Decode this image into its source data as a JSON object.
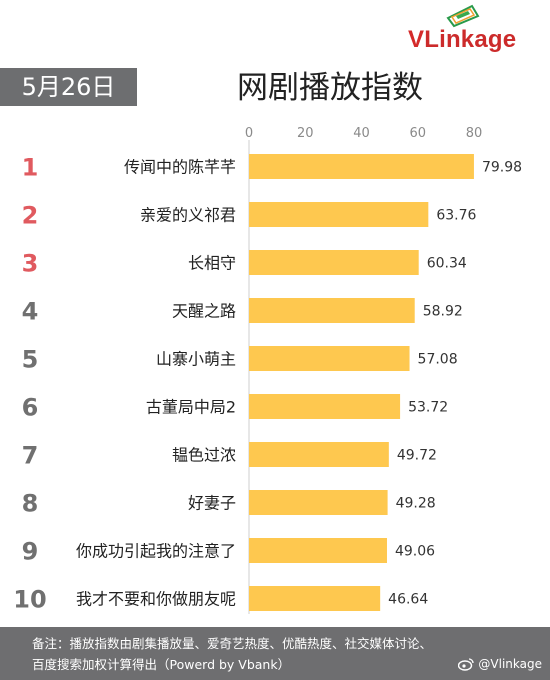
{
  "header": {
    "logo_v": "V",
    "logo_rest": "Linkage",
    "date": "5月26日",
    "title": "网剧播放指数"
  },
  "colors": {
    "bar": "#fec84f",
    "rank_top3": "#e05a5f",
    "rank_other": "#707070",
    "badge_bg": "#6d6e70",
    "footer_bg": "#6e6e70",
    "logo_red": "#d42a2a"
  },
  "chart_data": {
    "type": "bar",
    "orientation": "horizontal",
    "title": "网剧播放指数",
    "xlim": [
      0,
      80
    ],
    "xticks": [
      0,
      20,
      40,
      60,
      80
    ],
    "categories": [
      "传闻中的陈芊芊",
      "亲爱的义祁君",
      "长相守",
      "天醒之路",
      "山寨小萌主",
      "古董局中局2",
      "韫色过浓",
      "好妻子",
      "你成功引起我的注意了",
      "我才不要和你做朋友呢"
    ],
    "ranks": [
      "1",
      "2",
      "3",
      "4",
      "5",
      "6",
      "7",
      "8",
      "9",
      "10"
    ],
    "values": [
      79.98,
      63.76,
      60.34,
      58.92,
      57.08,
      53.72,
      49.72,
      49.28,
      49.06,
      46.64
    ],
    "value_labels": [
      "79.98",
      "63.76",
      "60.34",
      "58.92",
      "57.08",
      "53.72",
      "49.72",
      "49.28",
      "49.06",
      "46.64"
    ]
  },
  "footer": {
    "note_line1": "备注：播放指数由剧集播放量、爱奇艺热度、优酷热度、社交媒体讨论、",
    "note_line2": "百度搜索加权计算得出（Powerd by Vbank）",
    "weibo_handle": "@Vlinkage"
  }
}
